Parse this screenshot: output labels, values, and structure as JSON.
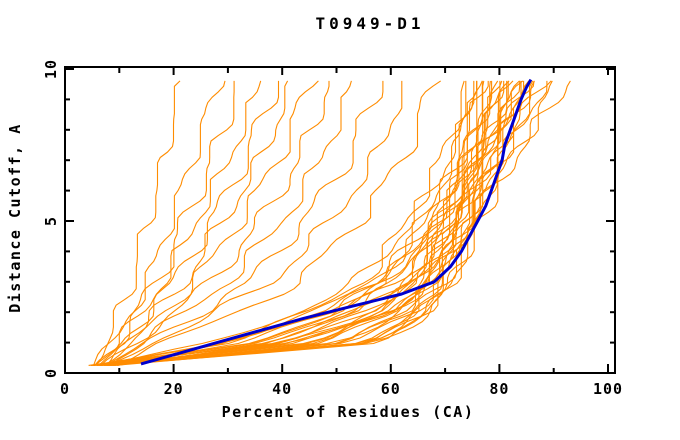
{
  "title": "T0949-D1",
  "axes": {
    "x": {
      "label": "Percent of Residues (CA)",
      "min": 0,
      "max": 100,
      "major_ticks": [
        0,
        20,
        40,
        60,
        80,
        100
      ],
      "minor_step": 10
    },
    "y": {
      "label": "Distance Cutoff, A",
      "min": 0,
      "max": 10,
      "major_ticks": [
        0,
        5,
        10
      ],
      "minor_step": 1
    }
  },
  "colors": {
    "model_lines": "#ff8c00",
    "reference_line": "#0000cd",
    "axis": "#000000",
    "background": "#ffffff"
  },
  "chart_data": {
    "type": "line",
    "title": "T0949-D1",
    "xlabel": "Percent of Residues (CA)",
    "ylabel": "Distance Cutoff, A",
    "xlim": [
      0,
      100
    ],
    "ylim": [
      0,
      10
    ],
    "grid": false,
    "legend": null,
    "description": "Cumulative percent of CA residues (x) under each distance cutoff in Angstroms (y); many orange model curves and one thick blue reference curve",
    "control_cutoffs": [
      0.25,
      1,
      2,
      3,
      5,
      7,
      9.7
    ],
    "model_series_percents": [
      [
        5,
        8,
        10,
        12,
        15,
        18,
        21
      ],
      [
        5,
        9,
        12,
        15,
        19,
        23,
        28
      ],
      [
        6,
        10,
        13,
        17,
        22,
        27,
        32
      ],
      [
        6,
        10,
        14,
        18,
        24,
        30,
        36
      ],
      [
        6,
        11,
        15,
        20,
        27,
        33,
        39
      ],
      [
        7,
        12,
        17,
        22,
        29,
        36,
        42
      ],
      [
        7,
        12,
        18,
        24,
        32,
        39,
        45
      ],
      [
        7,
        13,
        20,
        27,
        36,
        43,
        49
      ],
      [
        8,
        14,
        22,
        30,
        40,
        47,
        53
      ],
      [
        8,
        15,
        25,
        34,
        44,
        52,
        58
      ],
      [
        8,
        16,
        28,
        38,
        49,
        57,
        63
      ],
      [
        9,
        18,
        32,
        43,
        54,
        62,
        68
      ],
      [
        5,
        42,
        58,
        64,
        70,
        72,
        73
      ],
      [
        5,
        30,
        45,
        55,
        63,
        69,
        74
      ],
      [
        6,
        52,
        62,
        66,
        70,
        72.5,
        74.5
      ],
      [
        6,
        35,
        50,
        58,
        66,
        71,
        75
      ],
      [
        7,
        57,
        65,
        68,
        71,
        73.5,
        75.5
      ],
      [
        7,
        27,
        43,
        54,
        64,
        70.5,
        76
      ],
      [
        8,
        45,
        58,
        64,
        70,
        73.5,
        76.5
      ],
      [
        8,
        33,
        49,
        58,
        67,
        72.5,
        77
      ],
      [
        9,
        55,
        64,
        68,
        72,
        75,
        77.5
      ],
      [
        5,
        38,
        54,
        62,
        69,
        74,
        78
      ],
      [
        6,
        58,
        66,
        70,
        73.5,
        76,
        78.5
      ],
      [
        6,
        29,
        46,
        57,
        67,
        73,
        79
      ],
      [
        7,
        47,
        60,
        66,
        71.5,
        75.5,
        79.5
      ],
      [
        7,
        36,
        52,
        61,
        69,
        74.5,
        80
      ],
      [
        8,
        58,
        67,
        71,
        74.5,
        77.5,
        80.5
      ],
      [
        8,
        31,
        48,
        59,
        68.5,
        74.5,
        81
      ],
      [
        9,
        50,
        62,
        67.5,
        72.5,
        76.5,
        81.5
      ],
      [
        9,
        40,
        56,
        64,
        71,
        76,
        82
      ],
      [
        5,
        56,
        66,
        70,
        74,
        78,
        82.5
      ],
      [
        5,
        34,
        51,
        61,
        69.5,
        75.5,
        83
      ],
      [
        6,
        44,
        59,
        66,
        72,
        77,
        83.5
      ],
      [
        6,
        58,
        67,
        71.5,
        75.5,
        79,
        84
      ],
      [
        7,
        37,
        54,
        63,
        71,
        77,
        84.5
      ],
      [
        7,
        53,
        64,
        69,
        74,
        78.5,
        85
      ],
      [
        8,
        28,
        47,
        59,
        69,
        76,
        85.5
      ],
      [
        8,
        48,
        61,
        67,
        73.5,
        78.5,
        86
      ],
      [
        9,
        41,
        57,
        65.5,
        72.5,
        78,
        86.5
      ],
      [
        9,
        56,
        66,
        71,
        75.5,
        80,
        87
      ],
      [
        6,
        46,
        60,
        67,
        74,
        80,
        88
      ],
      [
        7,
        39,
        56,
        65,
        73,
        80,
        89
      ],
      [
        8,
        51,
        63,
        69.5,
        76,
        82,
        91
      ],
      [
        8,
        43,
        59,
        67,
        75,
        82.5,
        93
      ]
    ],
    "reference_series": {
      "name": "reference-model-blue",
      "cutoffs": [
        0.3,
        0.6,
        1,
        1.4,
        1.8,
        2.2,
        2.6,
        3,
        3.5,
        4,
        4.5,
        5,
        5.5,
        6,
        6.5,
        7,
        7.5,
        8,
        8.5,
        9,
        9.4,
        9.65
      ],
      "percents": [
        14,
        20,
        28,
        36,
        44,
        53,
        62,
        68,
        71,
        73,
        74.5,
        76,
        77.5,
        78.5,
        79.5,
        80.5,
        81,
        82,
        83,
        84,
        85,
        85.8
      ]
    }
  }
}
